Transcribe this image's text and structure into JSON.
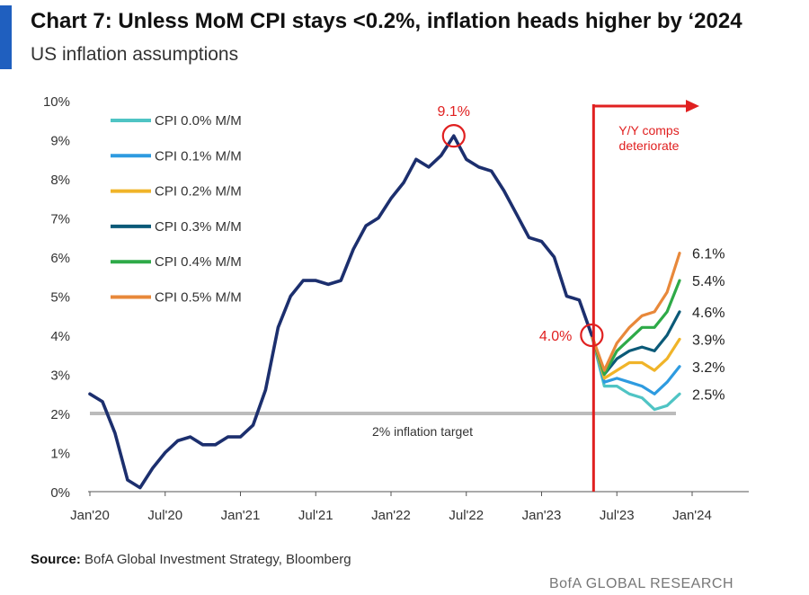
{
  "title": "Chart 7: Unless MoM CPI stays <0.2%, inflation heads higher by ‘2024",
  "subtitle": "US inflation assumptions",
  "source_label": "Source:",
  "source_text": "BofA Global Investment Strategy, Bloomberg",
  "brand": "BofA GLOBAL RESEARCH",
  "chart_data": {
    "type": "line",
    "x_tick_labels": [
      "Jan'20",
      "Jul'20",
      "Jan'21",
      "Jul'21",
      "Jan'22",
      "Jul'22",
      "Jan'23",
      "Jul'23",
      "Jan'24"
    ],
    "y_tick_labels": [
      "0%",
      "1%",
      "2%",
      "3%",
      "4%",
      "5%",
      "6%",
      "7%",
      "8%",
      "9%",
      "10%"
    ],
    "ylim": [
      0,
      10
    ],
    "xlim": [
      "2020-01",
      "2024-01"
    ],
    "grid": false,
    "legend_position": "top-left",
    "history": {
      "name": "",
      "color": "#1c2f6e",
      "x": [
        "2020-01",
        "2020-02",
        "2020-03",
        "2020-04",
        "2020-05",
        "2020-06",
        "2020-07",
        "2020-08",
        "2020-09",
        "2020-10",
        "2020-11",
        "2020-12",
        "2021-01",
        "2021-02",
        "2021-03",
        "2021-04",
        "2021-05",
        "2021-06",
        "2021-07",
        "2021-08",
        "2021-09",
        "2021-10",
        "2021-11",
        "2021-12",
        "2022-01",
        "2022-02",
        "2022-03",
        "2022-04",
        "2022-05",
        "2022-06",
        "2022-07",
        "2022-08",
        "2022-09",
        "2022-10",
        "2022-11",
        "2022-12",
        "2023-01",
        "2023-02",
        "2023-03",
        "2023-04",
        "2023-05"
      ],
      "values": [
        2.5,
        2.3,
        1.5,
        0.3,
        0.1,
        0.6,
        1.0,
        1.3,
        1.4,
        1.2,
        1.2,
        1.4,
        1.4,
        1.7,
        2.6,
        4.2,
        5.0,
        5.4,
        5.4,
        5.3,
        5.4,
        6.2,
        6.8,
        7.0,
        7.5,
        7.9,
        8.5,
        8.3,
        8.6,
        9.1,
        8.5,
        8.3,
        8.2,
        7.7,
        7.1,
        6.5,
        6.4,
        6.0,
        5.0,
        4.9,
        4.0
      ]
    },
    "projection_x": [
      "2023-05",
      "2023-06",
      "2023-07",
      "2023-08",
      "2023-09",
      "2023-10",
      "2023-11",
      "2023-12"
    ],
    "series": [
      {
        "name": "CPI 0.0% M/M",
        "color": "#4fc4c4",
        "values": [
          4.0,
          2.7,
          2.7,
          2.5,
          2.4,
          2.1,
          2.2,
          2.5
        ],
        "end_label": "2.5%"
      },
      {
        "name": "CPI 0.1% M/M",
        "color": "#2e9be0",
        "values": [
          4.0,
          2.8,
          2.9,
          2.8,
          2.7,
          2.5,
          2.8,
          3.2
        ],
        "end_label": "3.2%"
      },
      {
        "name": "CPI 0.2% M/M",
        "color": "#f0b429",
        "values": [
          4.0,
          2.9,
          3.1,
          3.3,
          3.3,
          3.1,
          3.4,
          3.9
        ],
        "end_label": "3.9%"
      },
      {
        "name": "CPI 0.3% M/M",
        "color": "#0b5a78",
        "values": [
          4.0,
          3.0,
          3.4,
          3.6,
          3.7,
          3.6,
          4.0,
          4.6
        ],
        "end_label": "4.6%"
      },
      {
        "name": "CPI 0.4% M/M",
        "color": "#2eaa48",
        "values": [
          4.0,
          3.0,
          3.6,
          3.9,
          4.2,
          4.2,
          4.6,
          5.4
        ],
        "end_label": "5.4%"
      },
      {
        "name": "CPI 0.5% M/M",
        "color": "#e8883a",
        "values": [
          4.0,
          3.1,
          3.8,
          4.2,
          4.5,
          4.6,
          5.1,
          6.1
        ],
        "end_label": "6.1%"
      }
    ],
    "target_line": {
      "value": 2.0,
      "label": "2% inflation target",
      "color": "#bbbbbb"
    },
    "vertical_marker": {
      "x": "2023-05",
      "label_line1": "Y/Y comps",
      "label_line2": "deteriorate",
      "color": "#e02020"
    },
    "annotations": [
      {
        "x": "2022-06",
        "y": 9.1,
        "label": "9.1%"
      },
      {
        "x": "2023-05",
        "y": 4.0,
        "label": "4.0%"
      }
    ]
  }
}
